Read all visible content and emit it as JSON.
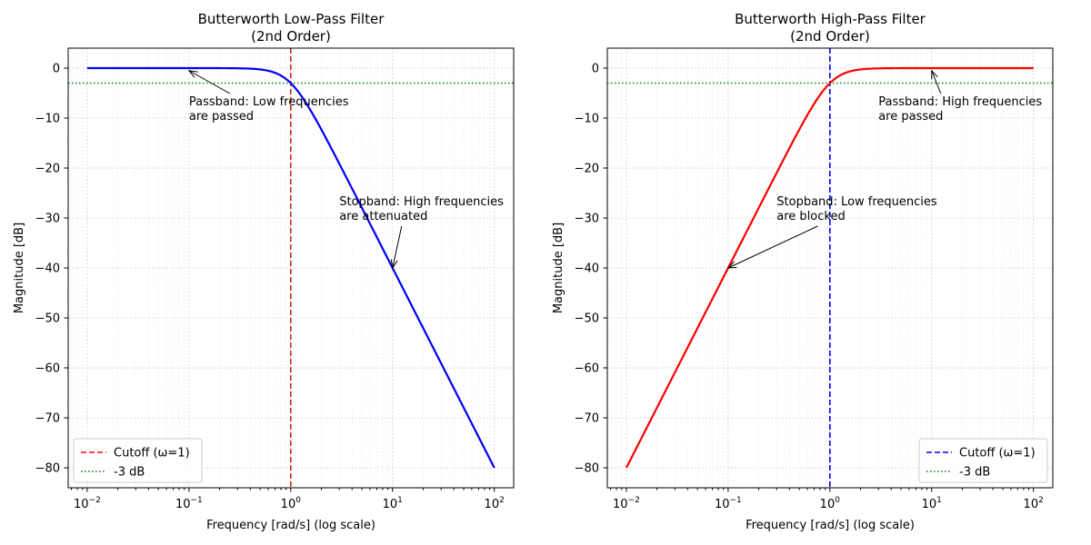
{
  "chart_data": [
    {
      "type": "line",
      "title_line1": "Butterworth Low-Pass Filter",
      "title_line2": "(2nd Order)",
      "xlabel": "Frequency [rad/s] (log scale)",
      "ylabel": "Magnitude [dB]",
      "xscale": "log",
      "xlim": [
        0.0065,
        155
      ],
      "ylim": [
        -84,
        4
      ],
      "x_ticks": [
        {
          "value": 0.01,
          "base": "10",
          "exp": "−2"
        },
        {
          "value": 0.1,
          "base": "10",
          "exp": "−1"
        },
        {
          "value": 1,
          "base": "10",
          "exp": "0"
        },
        {
          "value": 10,
          "base": "10",
          "exp": "1"
        },
        {
          "value": 100,
          "base": "10",
          "exp": "2"
        }
      ],
      "y_ticks": [
        {
          "value": 0,
          "label": "0"
        },
        {
          "value": -10,
          "label": "−10"
        },
        {
          "value": -20,
          "label": "−20"
        },
        {
          "value": -30,
          "label": "−30"
        },
        {
          "value": -40,
          "label": "−40"
        },
        {
          "value": -50,
          "label": "−50"
        },
        {
          "value": -60,
          "label": "−60"
        },
        {
          "value": -70,
          "label": "−70"
        },
        {
          "value": -80,
          "label": "−80"
        }
      ],
      "grid": true,
      "filter": "lowpass",
      "order": 2,
      "x_range": [
        0.01,
        100
      ],
      "series": [
        {
          "color": "#0000ff",
          "x": [
            0.01,
            0.03,
            0.1,
            0.2,
            0.3,
            0.5,
            0.7,
            1,
            1.5,
            2,
            3,
            5,
            7,
            10,
            20,
            30,
            50,
            70,
            100
          ],
          "y": [
            0,
            0,
            0,
            0,
            -0.0035,
            -0.26,
            -0.96,
            -3.01,
            -7.7,
            -12.3,
            -19.1,
            -28.0,
            -33.8,
            -40.0,
            -52.0,
            -59.1,
            -67.96,
            -73.8,
            -80.0
          ]
        }
      ],
      "cutoff": {
        "x": 1,
        "color": "#d62728",
        "label": "Cutoff (ω=1)"
      },
      "threshold": {
        "y": -3,
        "color": "#008000",
        "label": "-3 dB"
      },
      "legend": {
        "placement": "lower-left",
        "entries": [
          {
            "label": "Cutoff (ω=1)",
            "color": "#ff0000",
            "style": "dashed"
          },
          {
            "label": "-3 dB",
            "color": "#008000",
            "style": "dotted"
          }
        ]
      },
      "annotations": [
        {
          "line1": "Passband: Low frequencies",
          "line2": "are passed",
          "text_x": 0.1,
          "text_y": -8,
          "arrow_x": 0.1,
          "arrow_y": -0.5
        },
        {
          "line1": "Stopband: High frequencies",
          "line2": "are attenuated",
          "text_x": 3,
          "text_y": -28,
          "arrow_x": 10,
          "arrow_y": -40
        }
      ]
    },
    {
      "type": "line",
      "title_line1": "Butterworth High-Pass Filter",
      "title_line2": "(2nd Order)",
      "xlabel": "Frequency [rad/s] (log scale)",
      "ylabel": "Magnitude [dB]",
      "xscale": "log",
      "xlim": [
        0.0065,
        155
      ],
      "ylim": [
        -84,
        4
      ],
      "x_ticks": [
        {
          "value": 0.01,
          "base": "10",
          "exp": "−2"
        },
        {
          "value": 0.1,
          "base": "10",
          "exp": "−1"
        },
        {
          "value": 1,
          "base": "10",
          "exp": "0"
        },
        {
          "value": 10,
          "base": "10",
          "exp": "1"
        },
        {
          "value": 100,
          "base": "10",
          "exp": "2"
        }
      ],
      "y_ticks": [
        {
          "value": 0,
          "label": "0"
        },
        {
          "value": -10,
          "label": "−10"
        },
        {
          "value": -20,
          "label": "−20"
        },
        {
          "value": -30,
          "label": "−30"
        },
        {
          "value": -40,
          "label": "−40"
        },
        {
          "value": -50,
          "label": "−50"
        },
        {
          "value": -60,
          "label": "−60"
        },
        {
          "value": -70,
          "label": "−70"
        },
        {
          "value": -80,
          "label": "−80"
        }
      ],
      "grid": true,
      "filter": "highpass",
      "order": 2,
      "x_range": [
        0.01,
        100
      ],
      "series": [
        {
          "color": "#ff0000",
          "x": [
            0.01,
            0.014,
            0.02,
            0.03,
            0.05,
            0.07,
            0.1,
            0.2,
            0.3,
            0.5,
            0.7,
            1,
            1.5,
            2,
            3,
            5,
            10,
            30,
            100
          ],
          "y": [
            -80.0,
            -74.2,
            -67.96,
            -60.9,
            -52.0,
            -46.2,
            -40.0,
            -27.97,
            -21.0,
            -12.3,
            -7.7,
            -3.01,
            -0.96,
            -0.26,
            -0.05,
            0,
            0,
            0,
            0
          ]
        }
      ],
      "cutoff": {
        "x": 1,
        "color": "#0000ff",
        "label": "Cutoff (ω=1)"
      },
      "threshold": {
        "y": -3,
        "color": "#008000",
        "label": "-3 dB"
      },
      "legend": {
        "placement": "lower-right",
        "entries": [
          {
            "label": "Cutoff (ω=1)",
            "color": "#0000ff",
            "style": "dashed"
          },
          {
            "label": "-3 dB",
            "color": "#008000",
            "style": "dotted"
          }
        ]
      },
      "annotations": [
        {
          "line1": "Passband: High frequencies",
          "line2": "are passed",
          "text_x": 3,
          "text_y": -8,
          "arrow_x": 10,
          "arrow_y": -0.5
        },
        {
          "line1": "Stopband: Low frequencies",
          "line2": "are blocked",
          "text_x": 0.3,
          "text_y": -28,
          "arrow_x": 0.1,
          "arrow_y": -40
        }
      ]
    }
  ]
}
